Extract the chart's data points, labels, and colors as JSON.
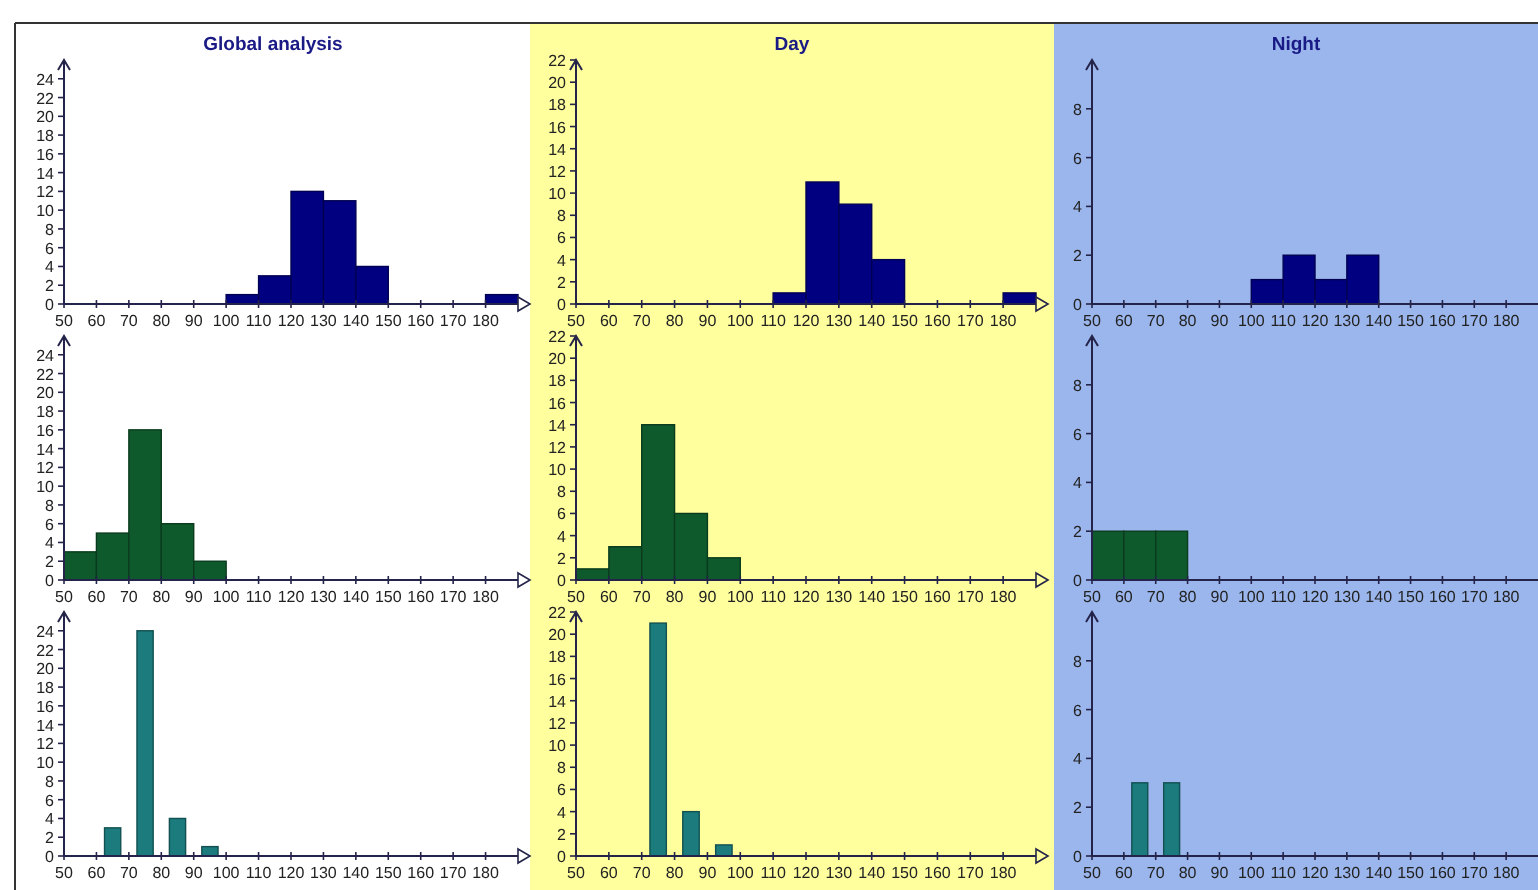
{
  "chart_data": [
    {
      "type": "histogram",
      "title": "Global analysis",
      "bins": [
        100,
        110,
        120,
        130,
        140,
        150,
        160,
        170,
        180,
        190
      ],
      "values": [
        1,
        3,
        12,
        11,
        4,
        0,
        0,
        0,
        1
      ],
      "color": "#000080",
      "xlim": [
        50,
        190
      ],
      "xticks": [
        50,
        60,
        70,
        80,
        90,
        100,
        110,
        120,
        130,
        140,
        150,
        160,
        170,
        180
      ],
      "ylim": [
        0,
        26
      ],
      "yticks": [
        0,
        2,
        4,
        6,
        8,
        10,
        12,
        14,
        16,
        18,
        20,
        22,
        24
      ]
    },
    {
      "type": "histogram",
      "title": "Day",
      "bins": [
        110,
        120,
        130,
        140,
        150,
        160,
        170,
        180,
        190
      ],
      "values": [
        1,
        11,
        9,
        4,
        0,
        0,
        0,
        1
      ],
      "color": "#000080",
      "xlim": [
        50,
        190
      ],
      "xticks": [
        50,
        60,
        70,
        80,
        90,
        100,
        110,
        120,
        130,
        140,
        150,
        160,
        170,
        180
      ],
      "ylim": [
        0,
        22
      ],
      "yticks": [
        0,
        2,
        4,
        6,
        8,
        10,
        12,
        14,
        16,
        18,
        20,
        22
      ]
    },
    {
      "type": "histogram",
      "title": "Night",
      "bins": [
        100,
        110,
        120,
        130,
        140
      ],
      "values": [
        1,
        2,
        1,
        2
      ],
      "color": "#000080",
      "xlim": [
        50,
        190
      ],
      "xticks": [
        50,
        60,
        70,
        80,
        90,
        100,
        110,
        120,
        130,
        140,
        150,
        160,
        170,
        180
      ],
      "ylim": [
        0,
        10
      ],
      "yticks": [
        0,
        2,
        4,
        6,
        8
      ]
    },
    {
      "type": "histogram",
      "bins": [
        50,
        60,
        70,
        80,
        90,
        100
      ],
      "values": [
        3,
        5,
        16,
        6,
        2
      ],
      "color": "#0f5a2c",
      "xlim": [
        50,
        190
      ],
      "xticks": [
        50,
        60,
        70,
        80,
        90,
        100,
        110,
        120,
        130,
        140,
        150,
        160,
        170,
        180
      ],
      "ylim": [
        0,
        26
      ],
      "yticks": [
        0,
        2,
        4,
        6,
        8,
        10,
        12,
        14,
        16,
        18,
        20,
        22,
        24
      ]
    },
    {
      "type": "histogram",
      "bins": [
        50,
        60,
        70,
        80,
        90,
        100
      ],
      "values": [
        1,
        3,
        14,
        6,
        2
      ],
      "color": "#0f5a2c",
      "xlim": [
        50,
        190
      ],
      "xticks": [
        50,
        60,
        70,
        80,
        90,
        100,
        110,
        120,
        130,
        140,
        150,
        160,
        170,
        180
      ],
      "ylim": [
        0,
        22
      ],
      "yticks": [
        0,
        2,
        4,
        6,
        8,
        10,
        12,
        14,
        16,
        18,
        20,
        22
      ]
    },
    {
      "type": "histogram",
      "bins": [
        50,
        60,
        70,
        80
      ],
      "values": [
        2,
        2,
        2
      ],
      "color": "#0f5a2c",
      "xlim": [
        50,
        190
      ],
      "xticks": [
        50,
        60,
        70,
        80,
        90,
        100,
        110,
        120,
        130,
        140,
        150,
        160,
        170,
        180
      ],
      "ylim": [
        0,
        10
      ],
      "yticks": [
        0,
        2,
        4,
        6,
        8
      ]
    },
    {
      "type": "bar",
      "x": [
        65,
        75,
        85,
        95
      ],
      "values": [
        3,
        24,
        4,
        1
      ],
      "color": "#1b7b7d",
      "xlim": [
        50,
        190
      ],
      "xticks": [
        50,
        60,
        70,
        80,
        90,
        100,
        110,
        120,
        130,
        140,
        150,
        160,
        170,
        180
      ],
      "ylim": [
        0,
        26
      ],
      "yticks": [
        0,
        2,
        4,
        6,
        8,
        10,
        12,
        14,
        16,
        18,
        20,
        22,
        24
      ]
    },
    {
      "type": "bar",
      "x": [
        75,
        85,
        95
      ],
      "values": [
        21,
        4,
        1
      ],
      "color": "#1b7b7d",
      "xlim": [
        50,
        190
      ],
      "xticks": [
        50,
        60,
        70,
        80,
        90,
        100,
        110,
        120,
        130,
        140,
        150,
        160,
        170,
        180
      ],
      "ylim": [
        0,
        22
      ],
      "yticks": [
        0,
        2,
        4,
        6,
        8,
        10,
        12,
        14,
        16,
        18,
        20,
        22
      ]
    },
    {
      "type": "bar",
      "x": [
        65,
        75
      ],
      "values": [
        3,
        3
      ],
      "color": "#1b7b7d",
      "xlim": [
        50,
        190
      ],
      "xticks": [
        50,
        60,
        70,
        80,
        90,
        100,
        110,
        120,
        130,
        140,
        150,
        160,
        170,
        180
      ],
      "ylim": [
        0,
        10
      ],
      "yticks": [
        0,
        2,
        4,
        6,
        8
      ]
    }
  ]
}
